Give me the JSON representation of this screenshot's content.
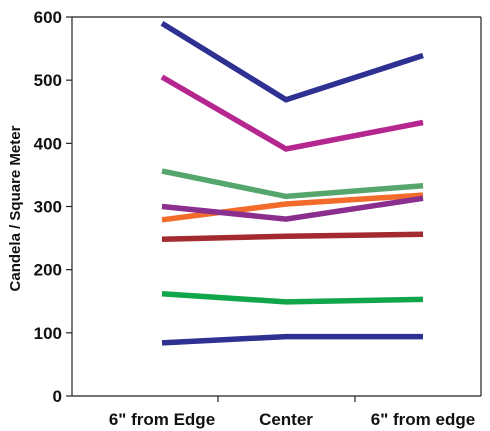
{
  "chart_data": {
    "type": "line",
    "title": "",
    "xlabel": "",
    "ylabel": "Candela / Square Meter",
    "categories": [
      "6\" from Edge",
      "Center",
      "6\" from edge"
    ],
    "ylim": [
      0,
      600
    ],
    "yticks": [
      0,
      100,
      200,
      300,
      400,
      500,
      600
    ],
    "grid": false,
    "legend": "none",
    "series": [
      {
        "color": "#2e3192",
        "values": [
          590,
          469,
          539
        ]
      },
      {
        "color": "#b5268f",
        "values": [
          505,
          391,
          433
        ]
      },
      {
        "color": "#55a66c",
        "values": [
          356,
          316,
          333
        ]
      },
      {
        "color": "#f26b2b",
        "values": [
          279,
          304,
          318
        ]
      },
      {
        "color": "#8b2f8f",
        "values": [
          300,
          280,
          313
        ]
      },
      {
        "color": "#a32a2e",
        "values": [
          248,
          253,
          256
        ]
      },
      {
        "color": "#10a64a",
        "values": [
          162,
          149,
          153
        ]
      },
      {
        "color": "#2e3192",
        "values": [
          84,
          94,
          94
        ]
      }
    ]
  }
}
